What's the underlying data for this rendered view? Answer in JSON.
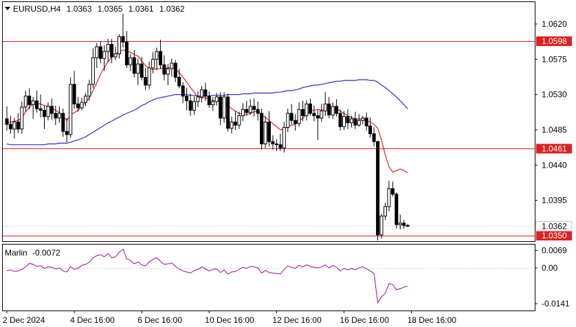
{
  "header": {
    "symbol": "EURUSD,H4",
    "open": "1.0363",
    "high": "1.0365",
    "low": "1.0361",
    "close": "1.0362"
  },
  "indicator_header": {
    "name": "Marlin",
    "value": "-0.0072"
  },
  "colors": {
    "bull_body": "#ffffff",
    "bear_body": "#000000",
    "fast_ma": "#e02020",
    "slow_ma": "#2a2ad0",
    "levels": "#e02020",
    "marlin": "#a020a0",
    "level_box": "#e02020"
  },
  "chart_data": [
    {
      "type": "candlestick",
      "symbol": "EURUSD",
      "timeframe": "H4",
      "ylim": [
        1.0343,
        1.0648
      ],
      "y_ticks": [
        "1.0620",
        "1.0575",
        "1.0530",
        "1.0485",
        "1.0440",
        "1.0395"
      ],
      "x_ticks": [
        "2 Dec 2024",
        "4 Dec 16:00",
        "6 Dec 16:00",
        "10 Dec 16:00",
        "12 Dec 16:00",
        "16 Dec 16:00",
        "18 Dec 16:00"
      ],
      "x_tick_index": [
        0,
        18,
        36,
        54,
        72,
        90,
        108
      ],
      "levels": [
        {
          "label": "1.0598",
          "value": 1.0598
        },
        {
          "label": "1.0461",
          "value": 1.0461
        },
        {
          "label": "1.0350",
          "value": 1.035
        }
      ],
      "current_price": {
        "label": "1.0362",
        "value": 1.0362
      },
      "candles": [
        [
          1.0499,
          1.0515,
          1.0484,
          1.0492
        ],
        [
          1.0492,
          1.0503,
          1.048,
          1.0486
        ],
        [
          1.0486,
          1.05,
          1.0474,
          1.0495
        ],
        [
          1.0495,
          1.0506,
          1.0481,
          1.0486
        ],
        [
          1.0486,
          1.0521,
          1.048,
          1.0514
        ],
        [
          1.0514,
          1.0535,
          1.0508,
          1.0528
        ],
        [
          1.0528,
          1.0538,
          1.0511,
          1.0517
        ],
        [
          1.0517,
          1.0527,
          1.0499,
          1.0522
        ],
        [
          1.0522,
          1.0535,
          1.0507,
          1.0512
        ],
        [
          1.0512,
          1.053,
          1.0501,
          1.051
        ],
        [
          1.051,
          1.0516,
          1.0486,
          1.0502
        ],
        [
          1.0502,
          1.052,
          1.0497,
          1.0515
        ],
        [
          1.0515,
          1.0525,
          1.0498,
          1.0506
        ],
        [
          1.0506,
          1.0516,
          1.0491,
          1.05
        ],
        [
          1.05,
          1.0515,
          1.0494,
          1.0506
        ],
        [
          1.0506,
          1.0512,
          1.0476,
          1.0483
        ],
        [
          1.0483,
          1.05,
          1.0469,
          1.0479
        ],
        [
          1.0479,
          1.0552,
          1.0475,
          1.0543
        ],
        [
          1.0543,
          1.056,
          1.0512,
          1.0518
        ],
        [
          1.0518,
          1.0527,
          1.0508,
          1.0513
        ],
        [
          1.0513,
          1.0526,
          1.051,
          1.052
        ],
        [
          1.052,
          1.0532,
          1.0515,
          1.0528
        ],
        [
          1.0528,
          1.0549,
          1.0522,
          1.0543
        ],
        [
          1.0543,
          1.0589,
          1.0538,
          1.0577
        ],
        [
          1.0577,
          1.0596,
          1.0564,
          1.0591
        ],
        [
          1.0591,
          1.0598,
          1.057,
          1.0576
        ],
        [
          1.0576,
          1.0593,
          1.056,
          1.0585
        ],
        [
          1.0585,
          1.0601,
          1.0571,
          1.0594
        ],
        [
          1.0594,
          1.0601,
          1.057,
          1.0578
        ],
        [
          1.0578,
          1.0591,
          1.0574,
          1.0582
        ],
        [
          1.0582,
          1.0607,
          1.0576,
          1.0604
        ],
        [
          1.0604,
          1.0633,
          1.059,
          1.0597
        ],
        [
          1.0597,
          1.0611,
          1.0564,
          1.0568
        ],
        [
          1.0568,
          1.0582,
          1.056,
          1.0577
        ],
        [
          1.0577,
          1.0587,
          1.0552,
          1.0557
        ],
        [
          1.0557,
          1.0576,
          1.0542,
          1.0569
        ],
        [
          1.0569,
          1.0578,
          1.0548,
          1.0552
        ],
        [
          1.0552,
          1.0564,
          1.0536,
          1.0542
        ],
        [
          1.0542,
          1.0572,
          1.0537,
          1.0564
        ],
        [
          1.0564,
          1.0584,
          1.0557,
          1.0575
        ],
        [
          1.0575,
          1.059,
          1.0561,
          1.0585
        ],
        [
          1.0585,
          1.06,
          1.0563,
          1.0568
        ],
        [
          1.0568,
          1.058,
          1.0548,
          1.0556
        ],
        [
          1.0556,
          1.0569,
          1.0542,
          1.0563
        ],
        [
          1.0563,
          1.0576,
          1.0553,
          1.057
        ],
        [
          1.057,
          1.0574,
          1.0546,
          1.0552
        ],
        [
          1.0552,
          1.0563,
          1.0538,
          1.0541
        ],
        [
          1.0541,
          1.0546,
          1.0519,
          1.0528
        ],
        [
          1.0528,
          1.0539,
          1.051,
          1.0522
        ],
        [
          1.0522,
          1.0531,
          1.0503,
          1.051
        ],
        [
          1.051,
          1.0528,
          1.0504,
          1.0521
        ],
        [
          1.0521,
          1.0534,
          1.0514,
          1.0527
        ],
        [
          1.0527,
          1.0541,
          1.052,
          1.0536
        ],
        [
          1.0536,
          1.0545,
          1.0522,
          1.0528
        ],
        [
          1.0528,
          1.0534,
          1.0513,
          1.0517
        ],
        [
          1.0517,
          1.0527,
          1.0509,
          1.0521
        ],
        [
          1.0521,
          1.0532,
          1.0516,
          1.0527
        ],
        [
          1.0527,
          1.0533,
          1.0491,
          1.05
        ],
        [
          1.05,
          1.0533,
          1.0494,
          1.0527
        ],
        [
          1.0527,
          1.0531,
          1.0483,
          1.0487
        ],
        [
          1.0487,
          1.0502,
          1.048,
          1.0495
        ],
        [
          1.0495,
          1.0509,
          1.0485,
          1.0491
        ],
        [
          1.0491,
          1.0508,
          1.0486,
          1.0503
        ],
        [
          1.0503,
          1.0519,
          1.0496,
          1.0511
        ],
        [
          1.0511,
          1.0522,
          1.0503,
          1.0507
        ],
        [
          1.0507,
          1.0524,
          1.0504,
          1.0515
        ],
        [
          1.0515,
          1.0525,
          1.0502,
          1.0511
        ],
        [
          1.0511,
          1.0521,
          1.0497,
          1.0506
        ],
        [
          1.0506,
          1.0512,
          1.046,
          1.0467
        ],
        [
          1.0467,
          1.0502,
          1.0462,
          1.0495
        ],
        [
          1.0495,
          1.0509,
          1.0464,
          1.047
        ],
        [
          1.047,
          1.0478,
          1.046,
          1.0467
        ],
        [
          1.0467,
          1.0473,
          1.0458,
          1.0466
        ],
        [
          1.0466,
          1.048,
          1.0458,
          1.0462
        ],
        [
          1.0462,
          1.0495,
          1.0456,
          1.0488
        ],
        [
          1.0488,
          1.0512,
          1.0482,
          1.0506
        ],
        [
          1.0506,
          1.0518,
          1.0492,
          1.0497
        ],
        [
          1.0497,
          1.0505,
          1.0484,
          1.0493
        ],
        [
          1.0493,
          1.052,
          1.0489,
          1.0511
        ],
        [
          1.0511,
          1.0522,
          1.0496,
          1.0503
        ],
        [
          1.0503,
          1.0523,
          1.0497,
          1.0518
        ],
        [
          1.0518,
          1.0525,
          1.0503,
          1.0506
        ],
        [
          1.0506,
          1.0516,
          1.0496,
          1.0503
        ],
        [
          1.0503,
          1.051,
          1.0472,
          1.05
        ],
        [
          1.05,
          1.0518,
          1.0495,
          1.0509
        ],
        [
          1.0509,
          1.0533,
          1.0503,
          1.0518
        ],
        [
          1.0518,
          1.0527,
          1.05,
          1.0504
        ],
        [
          1.0504,
          1.052,
          1.0499,
          1.0515
        ],
        [
          1.0515,
          1.0524,
          1.0502,
          1.0506
        ],
        [
          1.0506,
          1.0511,
          1.0484,
          1.0489
        ],
        [
          1.0489,
          1.0509,
          1.0485,
          1.0502
        ],
        [
          1.0502,
          1.0511,
          1.0486,
          1.0494
        ],
        [
          1.0494,
          1.0503,
          1.0488,
          1.0499
        ],
        [
          1.0499,
          1.0508,
          1.0486,
          1.0491
        ],
        [
          1.0491,
          1.0505,
          1.0489,
          1.0497
        ],
        [
          1.0497,
          1.0503,
          1.0492,
          1.05
        ],
        [
          1.05,
          1.0507,
          1.0484,
          1.049
        ],
        [
          1.049,
          1.0501,
          1.0475,
          1.048
        ],
        [
          1.048,
          1.0488,
          1.0464,
          1.047
        ],
        [
          1.047,
          1.0471,
          1.0344,
          1.0351
        ],
        [
          1.0351,
          1.0378,
          1.0346,
          1.0375
        ],
        [
          1.0375,
          1.0392,
          1.037,
          1.0387
        ],
        [
          1.0387,
          1.042,
          1.0381,
          1.041
        ],
        [
          1.041,
          1.0419,
          1.04,
          1.0403
        ],
        [
          1.0403,
          1.0405,
          1.0359,
          1.0364
        ],
        [
          1.0364,
          1.0377,
          1.0358,
          1.0366
        ],
        [
          1.0366,
          1.037,
          1.0359,
          1.0363
        ],
        [
          1.0363,
          1.0365,
          1.0361,
          1.0362
        ]
      ],
      "fast_ma": [
        1.0494,
        1.0495,
        1.0496,
        1.0497,
        1.05,
        1.0508,
        1.0514,
        1.0518,
        1.0519,
        1.0518,
        1.0516,
        1.0515,
        1.0513,
        1.051,
        1.0507,
        1.0502,
        1.0497,
        1.0504,
        1.0507,
        1.051,
        1.0515,
        1.052,
        1.0526,
        1.0535,
        1.0545,
        1.0556,
        1.0564,
        1.0572,
        1.0578,
        1.0582,
        1.0585,
        1.0587,
        1.0585,
        1.0584,
        1.0581,
        1.0579,
        1.0573,
        1.0567,
        1.0563,
        1.0562,
        1.0563,
        1.0563,
        1.0564,
        1.0564,
        1.0565,
        1.0562,
        1.0558,
        1.0552,
        1.0546,
        1.0539,
        1.0533,
        1.0527,
        1.0526,
        1.0526,
        1.0524,
        1.0522,
        1.0523,
        1.052,
        1.0519,
        1.0516,
        1.0512,
        1.0509,
        1.0506,
        1.0505,
        1.0504,
        1.0506,
        1.0508,
        1.0509,
        1.0504,
        1.0501,
        1.0497,
        1.0493,
        1.0489,
        1.0485,
        1.0486,
        1.0489,
        1.0491,
        1.0492,
        1.0496,
        1.05,
        1.0505,
        1.0509,
        1.051,
        1.0511,
        1.051,
        1.0512,
        1.0512,
        1.0513,
        1.0512,
        1.0509,
        1.0506,
        1.0503,
        1.0501,
        1.0499,
        1.0499,
        1.0498,
        1.0497,
        1.0495,
        1.0492,
        1.0487,
        1.0472,
        1.0453,
        1.0438,
        1.0431,
        1.0433,
        1.0435,
        1.0433,
        1.043
      ],
      "slow_ma": [
        1.0467,
        1.0466,
        1.0466,
        1.0466,
        1.0466,
        1.0466,
        1.0466,
        1.0466,
        1.0466,
        1.0466,
        1.0466,
        1.0467,
        1.0467,
        1.0467,
        1.0468,
        1.0468,
        1.0468,
        1.0469,
        1.0471,
        1.0472,
        1.0474,
        1.0476,
        1.0479,
        1.0482,
        1.0485,
        1.0488,
        1.0491,
        1.0494,
        1.0496,
        1.0499,
        1.0501,
        1.0504,
        1.0506,
        1.0508,
        1.051,
        1.0513,
        1.0516,
        1.0518,
        1.0521,
        1.0523,
        1.0525,
        1.0526,
        1.0527,
        1.0528,
        1.0529,
        1.053,
        1.053,
        1.053,
        1.053,
        1.0529,
        1.0529,
        1.0528,
        1.0528,
        1.0528,
        1.0528,
        1.0529,
        1.0529,
        1.0529,
        1.0529,
        1.053,
        1.053,
        1.053,
        1.053,
        1.0531,
        1.0531,
        1.0531,
        1.0532,
        1.0532,
        1.0532,
        1.0532,
        1.0532,
        1.0532,
        1.0533,
        1.0533,
        1.0534,
        1.0535,
        1.0535,
        1.0536,
        1.0537,
        1.0539,
        1.054,
        1.0541,
        1.0542,
        1.0542,
        1.0543,
        1.0544,
        1.0545,
        1.0546,
        1.0547,
        1.0547,
        1.0548,
        1.0548,
        1.0548,
        1.0548,
        1.0549,
        1.0549,
        1.0549,
        1.0548,
        1.0548,
        1.0546,
        1.0542,
        1.0539,
        1.0535,
        1.0531,
        1.0527,
        1.0522,
        1.0517,
        1.0512
      ]
    },
    {
      "type": "line",
      "name": "Marlin",
      "ylim": [
        -0.0168,
        0.0092
      ],
      "y_ticks": [
        "0.0069",
        "0.00",
        "-0.0141"
      ],
      "zero_line": true,
      "values": [
        -0.001,
        -0.0008,
        -0.0014,
        -0.0012,
        -0.0006,
        0.0004,
        0.0018,
        0.0014,
        0.0006,
        0.0008,
        -0.0002,
        0.0004,
        0.0002,
        -0.0004,
        0.0,
        -0.0012,
        -0.0016,
        0.0006,
        -0.0006,
        -0.0002,
        0.001,
        0.0014,
        0.0022,
        0.004,
        0.0048,
        0.0052,
        0.0044,
        0.0056,
        0.004,
        0.0044,
        0.0062,
        0.0074,
        0.0036,
        0.003,
        0.0016,
        0.0024,
        0.0012,
        0.0008,
        0.0024,
        0.0034,
        0.004,
        0.0026,
        0.0014,
        0.0016,
        0.002,
        0.0006,
        -0.0004,
        -0.0012,
        -0.0016,
        -0.002,
        -0.001,
        -0.0006,
        0.0004,
        -0.0004,
        -0.0012,
        -0.0006,
        -0.0004,
        -0.0018,
        -0.0008,
        -0.0024,
        -0.0016,
        -0.0014,
        -0.0006,
        0.0002,
        -0.0002,
        0.0006,
        0.0004,
        0.0,
        -0.002,
        -0.001,
        -0.0018,
        -0.002,
        -0.0022,
        -0.0024,
        -0.0006,
        0.0008,
        0.0002,
        -0.0002,
        0.001,
        0.0004,
        0.0012,
        0.0006,
        0.0002,
        0.0,
        0.0004,
        0.0012,
        0.0,
        0.001,
        0.0002,
        -0.0012,
        -0.0002,
        -0.0008,
        -0.0002,
        -0.0008,
        0.0,
        0.0004,
        -0.0004,
        -0.0012,
        -0.0022,
        -0.0138,
        -0.0114,
        -0.01,
        -0.0062,
        -0.0066,
        -0.0086,
        -0.0082,
        -0.0076,
        -0.0072
      ]
    }
  ]
}
